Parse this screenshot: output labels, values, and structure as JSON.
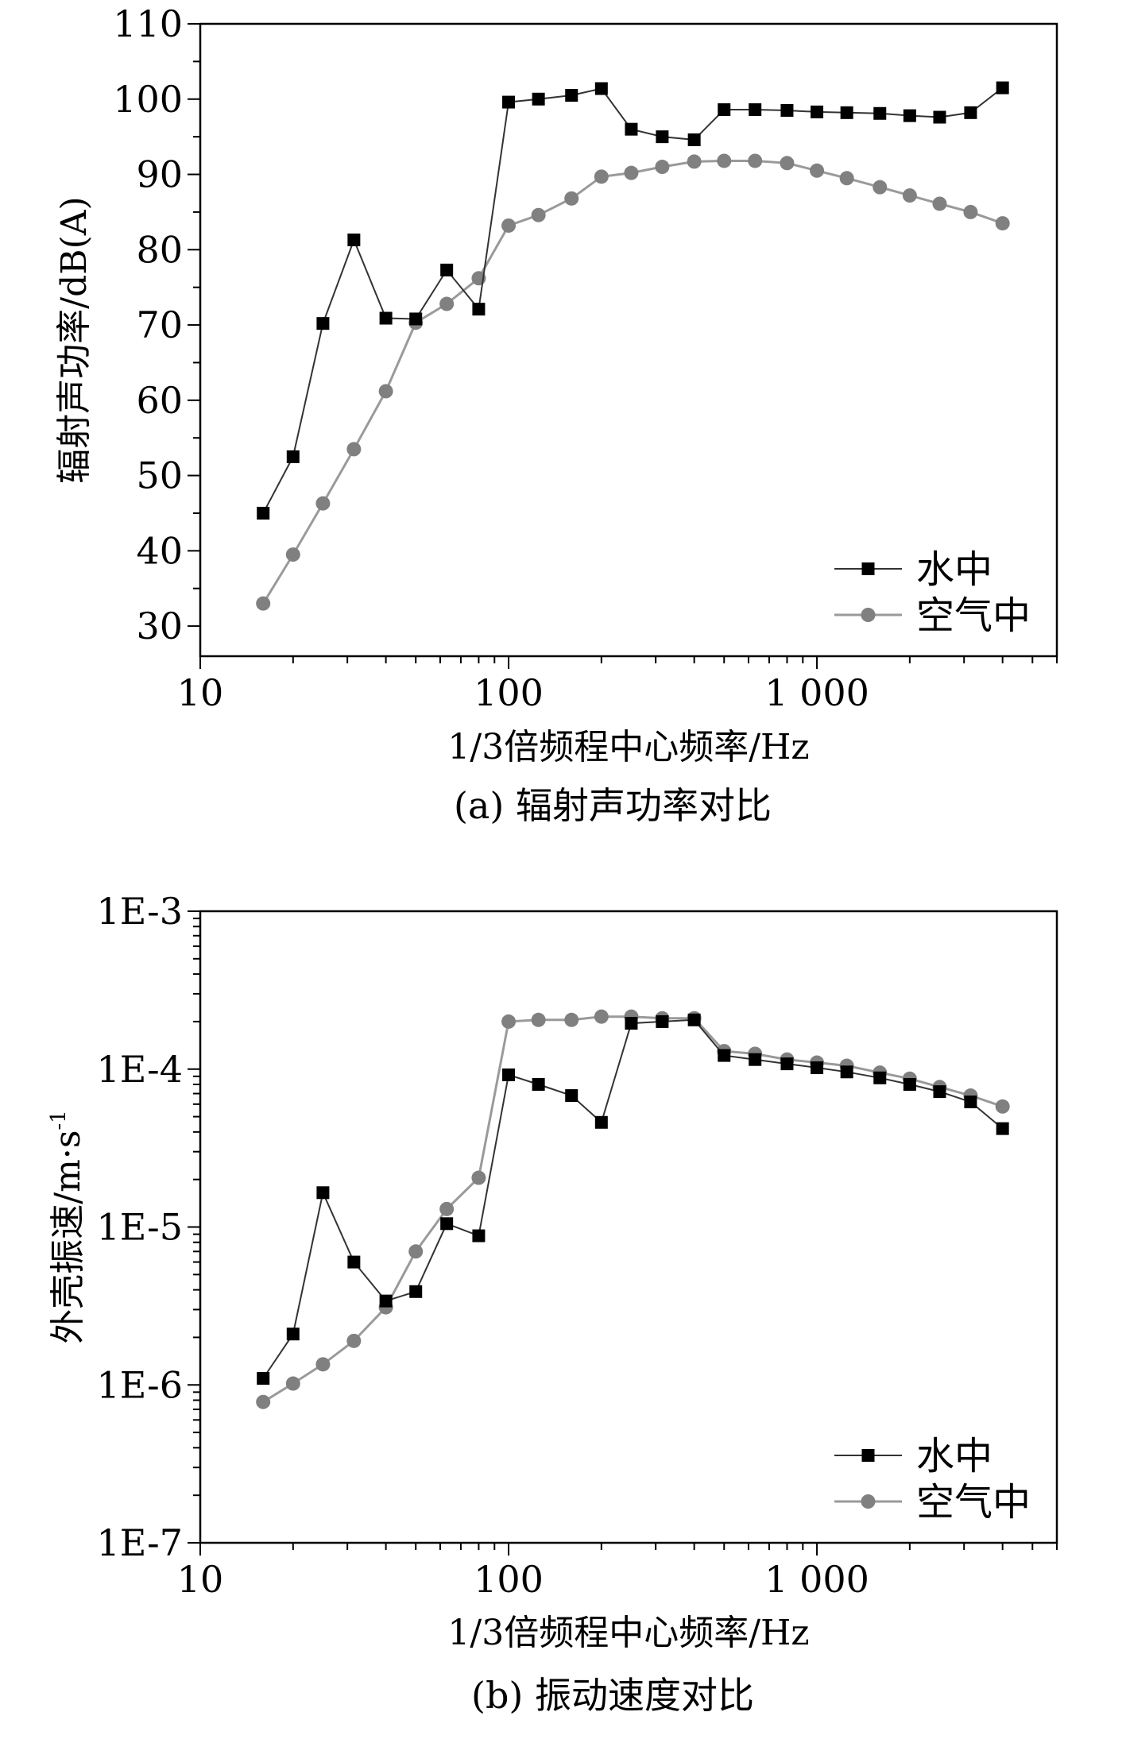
{
  "chart_data": [
    {
      "type": "line",
      "panel": "a",
      "caption": "(a) 辐射声功率对比",
      "xlabel": "1/3倍频程中心频率/Hz",
      "ylabel": "辐射声功率/dB(A)",
      "xscale": "log",
      "yscale": "linear",
      "xlim": [
        10,
        6000
      ],
      "ylim": [
        26,
        110
      ],
      "xticks": [
        {
          "value": 10,
          "label": "10"
        },
        {
          "value": 100,
          "label": "100"
        },
        {
          "value": 1000,
          "label": "1 000"
        }
      ],
      "yticks": [
        {
          "value": 30,
          "label": "30"
        },
        {
          "value": 40,
          "label": "40"
        },
        {
          "value": 50,
          "label": "50"
        },
        {
          "value": 60,
          "label": "60"
        },
        {
          "value": 70,
          "label": "70"
        },
        {
          "value": 80,
          "label": "80"
        },
        {
          "value": 90,
          "label": "90"
        },
        {
          "value": 100,
          "label": "100"
        },
        {
          "value": 110,
          "label": "110"
        }
      ],
      "legend_position": "bottom-right",
      "x": [
        16,
        20,
        25,
        31.5,
        40,
        50,
        63,
        80,
        100,
        125,
        160,
        200,
        250,
        315,
        400,
        500,
        630,
        800,
        1000,
        1250,
        1600,
        2000,
        2500,
        3150,
        4000
      ],
      "series": [
        {
          "name": "水中",
          "marker": "square",
          "color": "#000000",
          "values": [
            45,
            52.5,
            70.2,
            81.3,
            70.9,
            70.8,
            77.3,
            72.1,
            99.6,
            100,
            100.5,
            101.4,
            96,
            95,
            94.6,
            98.6,
            98.6,
            98.5,
            98.3,
            98.2,
            98.1,
            97.8,
            97.6,
            98.2,
            101.5
          ]
        },
        {
          "name": "空气中",
          "marker": "circle",
          "color": "#808080",
          "values": [
            33,
            39.5,
            46.3,
            53.5,
            61.2,
            70.3,
            72.8,
            76.2,
            83.2,
            84.6,
            86.8,
            89.7,
            90.2,
            91.0,
            91.7,
            91.8,
            91.8,
            91.5,
            90.5,
            89.5,
            88.3,
            87.2,
            86.1,
            85.0,
            83.5
          ]
        }
      ]
    },
    {
      "type": "line",
      "panel": "b",
      "caption": "(b) 振动速度对比",
      "xlabel": "1/3倍频程中心频率/Hz",
      "ylabel": "外壳振速/m·s",
      "ylabel_superscript": "-1",
      "xscale": "log",
      "yscale": "log",
      "xlim": [
        10,
        6000
      ],
      "ylim": [
        1e-07,
        0.001
      ],
      "xticks": [
        {
          "value": 10,
          "label": "10"
        },
        {
          "value": 100,
          "label": "100"
        },
        {
          "value": 1000,
          "label": "1 000"
        }
      ],
      "yticks": [
        {
          "value": 1e-07,
          "label": "1E-7"
        },
        {
          "value": 1e-06,
          "label": "1E-6"
        },
        {
          "value": 1e-05,
          "label": "1E-5"
        },
        {
          "value": 0.0001,
          "label": "1E-4"
        },
        {
          "value": 0.001,
          "label": "1E-3"
        }
      ],
      "legend_position": "bottom-right",
      "x": [
        16,
        20,
        25,
        31.5,
        40,
        50,
        63,
        80,
        100,
        125,
        160,
        200,
        250,
        315,
        400,
        500,
        630,
        800,
        1000,
        1250,
        1600,
        2000,
        2500,
        3150,
        4000
      ],
      "series": [
        {
          "name": "水中",
          "marker": "square",
          "color": "#000000",
          "values": [
            1.1e-06,
            2.1e-06,
            1.65e-05,
            6e-06,
            3.4e-06,
            3.9e-06,
            1.05e-05,
            8.8e-06,
            9.2e-05,
            8e-05,
            6.8e-05,
            4.6e-05,
            0.000195,
            0.0002,
            0.000205,
            0.000122,
            0.000115,
            0.000108,
            0.000102,
            9.6e-05,
            8.8e-05,
            8e-05,
            7.2e-05,
            6.2e-05,
            4.2e-05
          ]
        },
        {
          "name": "空气中",
          "marker": "circle",
          "color": "#808080",
          "values": [
            7.8e-07,
            1.02e-06,
            1.35e-06,
            1.9e-06,
            3.1e-06,
            7e-06,
            1.3e-05,
            2.05e-05,
            0.0002,
            0.000205,
            0.000205,
            0.000215,
            0.000215,
            0.00021,
            0.00021,
            0.00013,
            0.000125,
            0.000115,
            0.00011,
            0.000105,
            9.5e-05,
            8.7e-05,
            7.7e-05,
            6.8e-05,
            5.8e-05
          ]
        }
      ]
    }
  ]
}
